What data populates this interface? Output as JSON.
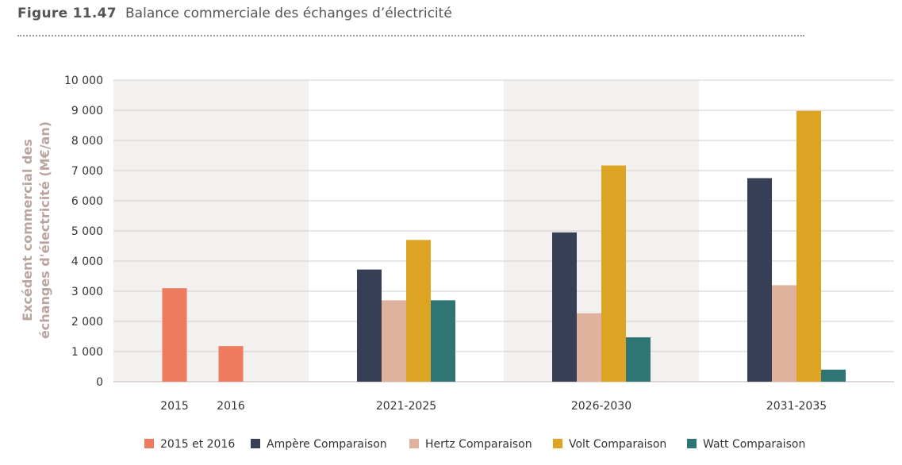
{
  "header": {
    "figure_number": "Figure 11.47",
    "figure_title": "Balance commerciale des échanges d’électricité"
  },
  "chart_data": {
    "type": "bar",
    "ylabel_line1": "Excédent commercial des",
    "ylabel_line2": "échanges d'électricité (M€/an)",
    "ylim": [
      0,
      10000
    ],
    "yticks": [
      "0",
      "1 000",
      "2 000",
      "3 000",
      "4 000",
      "5 000",
      "6 000",
      "7 000",
      "8 000",
      "9 000",
      "10 000"
    ],
    "grid": true,
    "legend_position": "bottom",
    "groups": [
      {
        "label": "2015",
        "bars": [
          {
            "series": "2015 et 2016",
            "value": 3100
          }
        ]
      },
      {
        "label": "2016",
        "bars": [
          {
            "series": "2015 et 2016",
            "value": 1180
          }
        ]
      },
      {
        "label": "2021-2025",
        "bars": [
          {
            "series": "Ampère Comparaison",
            "value": 3720
          },
          {
            "series": "Hertz Comparaison",
            "value": 2700
          },
          {
            "series": "Volt Comparaison",
            "value": 4700
          },
          {
            "series": "Watt Comparaison",
            "value": 2700
          }
        ]
      },
      {
        "label": "2026-2030",
        "bars": [
          {
            "series": "Ampère Comparaison",
            "value": 4950
          },
          {
            "series": "Hertz Comparaison",
            "value": 2270
          },
          {
            "series": "Volt Comparaison",
            "value": 7170
          },
          {
            "series": "Watt Comparaison",
            "value": 1470
          }
        ]
      },
      {
        "label": "2031-2035",
        "bars": [
          {
            "series": "Ampère Comparaison",
            "value": 6750
          },
          {
            "series": "Hertz Comparaison",
            "value": 3200
          },
          {
            "series": "Volt Comparaison",
            "value": 8980
          },
          {
            "series": "Watt Comparaison",
            "value": 400
          }
        ]
      }
    ],
    "series": [
      {
        "name": "2015 et 2016",
        "color": "#ee7a60"
      },
      {
        "name": "Ampère Comparaison",
        "color": "#363f55"
      },
      {
        "name": "Hertz Comparaison",
        "color": "#dfb29e"
      },
      {
        "name": "Volt Comparaison",
        "color": "#dca422"
      },
      {
        "name": "Watt Comparaison",
        "color": "#2e7573"
      }
    ],
    "band_color": "#f3f0f0"
  }
}
